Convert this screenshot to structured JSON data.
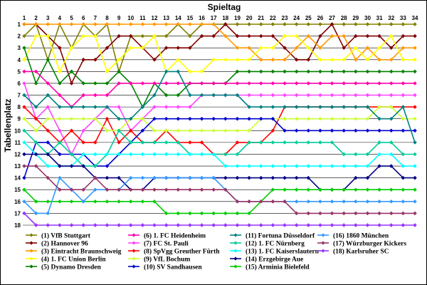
{
  "chart_data": {
    "type": "line",
    "xlabel": "Spieltag",
    "ylabel": "Tabellenplatz",
    "x": [
      1,
      2,
      3,
      4,
      5,
      6,
      7,
      8,
      9,
      10,
      11,
      12,
      13,
      14,
      15,
      16,
      17,
      18,
      19,
      20,
      21,
      22,
      23,
      24,
      25,
      26,
      27,
      28,
      29,
      30,
      31,
      32,
      33,
      34
    ],
    "yticks": [
      1,
      2,
      3,
      4,
      5,
      6,
      7,
      8,
      9,
      10,
      11,
      12,
      13,
      14,
      15,
      16,
      17,
      18
    ],
    "ylim": [
      1,
      18
    ],
    "y_reversed": true,
    "grid": "horizontal",
    "legend_position": "bottom",
    "series": [
      {
        "name": "(1) VfB Stuttgart",
        "color": "#808000",
        "values": [
          2,
          1,
          4,
          1,
          3,
          1,
          2,
          1,
          5,
          2,
          2,
          2,
          2,
          1,
          2,
          1,
          1,
          1,
          1,
          1,
          1,
          1,
          1,
          1,
          1,
          1,
          1,
          1,
          1,
          1,
          1,
          1,
          1,
          1
        ]
      },
      {
        "name": "(2) Hannover 96",
        "color": "#800000",
        "values": [
          1,
          1,
          2,
          3,
          6,
          4,
          4,
          3,
          2,
          2,
          3,
          4,
          3,
          3,
          3,
          2,
          2,
          1,
          2,
          2,
          2,
          2,
          3,
          4,
          4,
          2,
          1,
          3,
          2,
          2,
          2,
          3,
          2,
          2
        ]
      },
      {
        "name": "(3) Eintracht Braunschweig",
        "color": "#ff9900",
        "values": [
          1,
          1,
          1,
          1,
          1,
          1,
          1,
          1,
          1,
          1,
          1,
          1,
          1,
          1,
          1,
          1,
          1,
          2,
          3,
          3,
          4,
          4,
          4,
          3,
          2,
          3,
          2,
          2,
          4,
          3,
          4,
          4,
          3,
          3
        ]
      },
      {
        "name": "(4) 1. FC Union Berlin",
        "color": "#ffff00",
        "values": [
          4,
          2,
          2,
          5,
          3,
          2,
          2,
          5,
          4,
          3,
          3,
          2,
          5,
          4,
          5,
          5,
          4,
          4,
          4,
          4,
          3,
          3,
          2,
          2,
          3,
          4,
          4,
          4,
          3,
          4,
          3,
          2,
          4,
          4
        ]
      },
      {
        "name": "(5) Dynamo Dresden",
        "color": "#008000",
        "values": [
          3,
          6,
          4,
          6,
          5,
          6,
          6,
          6,
          5,
          6,
          8,
          6,
          7,
          7,
          6,
          6,
          6,
          6,
          5,
          5,
          5,
          5,
          5,
          5,
          5,
          5,
          5,
          5,
          5,
          5,
          5,
          5,
          5,
          5
        ]
      },
      {
        "name": "(6) 1. FC Heidenheim",
        "color": "#ff00aa",
        "values": [
          5,
          5,
          6,
          7,
          8,
          7,
          7,
          7,
          6,
          6,
          6,
          6,
          6,
          6,
          6,
          6,
          6,
          6,
          6,
          6,
          6,
          6,
          6,
          6,
          6,
          6,
          6,
          6,
          6,
          6,
          6,
          6,
          6,
          6
        ]
      },
      {
        "name": "(7) FC St. Pauli",
        "color": "#ff44ff",
        "values": [
          6,
          9,
          8,
          10,
          12,
          10,
          9,
          8,
          8,
          10,
          9,
          8,
          8,
          8,
          8,
          7,
          7,
          7,
          7,
          7,
          7,
          7,
          7,
          7,
          7,
          7,
          7,
          7,
          7,
          7,
          7,
          7,
          7,
          7
        ]
      },
      {
        "name": "(8) SpVgg Greuther Fürth",
        "color": "#ff0000",
        "values": [
          8,
          9,
          10,
          11,
          10,
          11,
          11,
          9,
          11,
          10,
          11,
          11,
          10,
          11,
          11,
          11,
          12,
          12,
          11,
          11,
          11,
          10,
          8,
          8,
          8,
          8,
          8,
          8,
          8,
          8,
          8,
          8,
          8,
          8
        ]
      },
      {
        "name": "(9) VfL Bochum",
        "color": "#ccff33",
        "values": [
          9,
          10,
          9,
          9,
          9,
          9,
          9,
          10,
          10,
          9,
          9,
          10,
          10,
          10,
          10,
          10,
          10,
          10,
          10,
          10,
          9,
          9,
          9,
          9,
          9,
          9,
          9,
          9,
          9,
          9,
          8,
          8,
          9,
          9
        ]
      },
      {
        "name": "(10) SV Sandhausen",
        "color": "#0000cc",
        "values": [
          14,
          11,
          11,
          12,
          12,
          12,
          13,
          13,
          12,
          11,
          10,
          9,
          9,
          9,
          9,
          9,
          9,
          9,
          9,
          9,
          9,
          9,
          10,
          10,
          10,
          10,
          10,
          10,
          10,
          10,
          10,
          10,
          10,
          10
        ]
      },
      {
        "name": "(11) Fortuna Düsseldorf",
        "color": "#008080",
        "values": [
          7,
          8,
          7,
          8,
          8,
          8,
          8,
          8,
          9,
          9,
          8,
          7,
          5,
          5,
          7,
          7,
          7,
          7,
          7,
          8,
          8,
          8,
          8,
          8,
          8,
          8,
          8,
          8,
          8,
          8,
          9,
          9,
          8,
          11
        ]
      },
      {
        "name": "(12) 1. FC Nürnberg",
        "color": "#00cc99",
        "values": [
          10,
          11,
          12,
          11,
          12,
          13,
          13,
          12,
          10,
          11,
          11,
          11,
          11,
          11,
          12,
          12,
          12,
          12,
          12,
          11,
          11,
          11,
          11,
          11,
          11,
          11,
          11,
          12,
          12,
          12,
          11,
          11,
          12,
          12
        ]
      },
      {
        "name": "(13) 1. FC Kaiserslautern",
        "color": "#00ffff",
        "values": [
          11,
          12,
          13,
          13,
          13,
          12,
          12,
          12,
          12,
          12,
          12,
          12,
          12,
          12,
          12,
          12,
          12,
          13,
          13,
          13,
          13,
          13,
          13,
          13,
          13,
          13,
          13,
          13,
          13,
          13,
          12,
          12,
          13,
          13
        ]
      },
      {
        "name": "(14) Erzgebirge Aue",
        "color": "#000080",
        "values": [
          12,
          12,
          12,
          13,
          13,
          13,
          14,
          14,
          14,
          15,
          15,
          14,
          14,
          14,
          14,
          14,
          14,
          14,
          14,
          14,
          14,
          14,
          14,
          14,
          14,
          15,
          15,
          15,
          14,
          14,
          13,
          13,
          14,
          14
        ]
      },
      {
        "name": "(15) Arminia Bielefeld",
        "color": "#00cc00",
        "values": [
          15,
          16,
          16,
          16,
          16,
          16,
          16,
          16,
          16,
          16,
          16,
          16,
          17,
          17,
          17,
          17,
          17,
          17,
          17,
          17,
          16,
          15,
          15,
          15,
          15,
          15,
          15,
          15,
          15,
          15,
          15,
          15,
          15,
          15
        ]
      },
      {
        "name": "(16) 1860 München",
        "color": "#3399ff",
        "values": [
          16,
          17,
          17,
          14,
          15,
          16,
          15,
          15,
          15,
          14,
          14,
          14,
          14,
          14,
          14,
          14,
          14,
          15,
          16,
          16,
          16,
          16,
          16,
          16,
          16,
          16,
          16,
          16,
          16,
          16,
          16,
          16,
          16,
          16
        ]
      },
      {
        "name": "(17) Würzburger Kickers",
        "color": "#993366",
        "values": [
          13,
          13,
          14,
          15,
          15,
          15,
          14,
          15,
          15,
          15,
          15,
          15,
          15,
          15,
          15,
          15,
          15,
          15,
          16,
          16,
          16,
          16,
          16,
          17,
          17,
          17,
          17,
          17,
          17,
          17,
          17,
          17,
          17,
          17
        ]
      },
      {
        "name": "(18) Karlsruher SC",
        "color": "#9933ff",
        "values": [
          17,
          18,
          18,
          18,
          18,
          18,
          18,
          18,
          18,
          18,
          18,
          18,
          18,
          18,
          18,
          18,
          18,
          18,
          18,
          18,
          18,
          18,
          18,
          18,
          18,
          18,
          18,
          18,
          18,
          18,
          18,
          18,
          18,
          18
        ]
      }
    ]
  }
}
